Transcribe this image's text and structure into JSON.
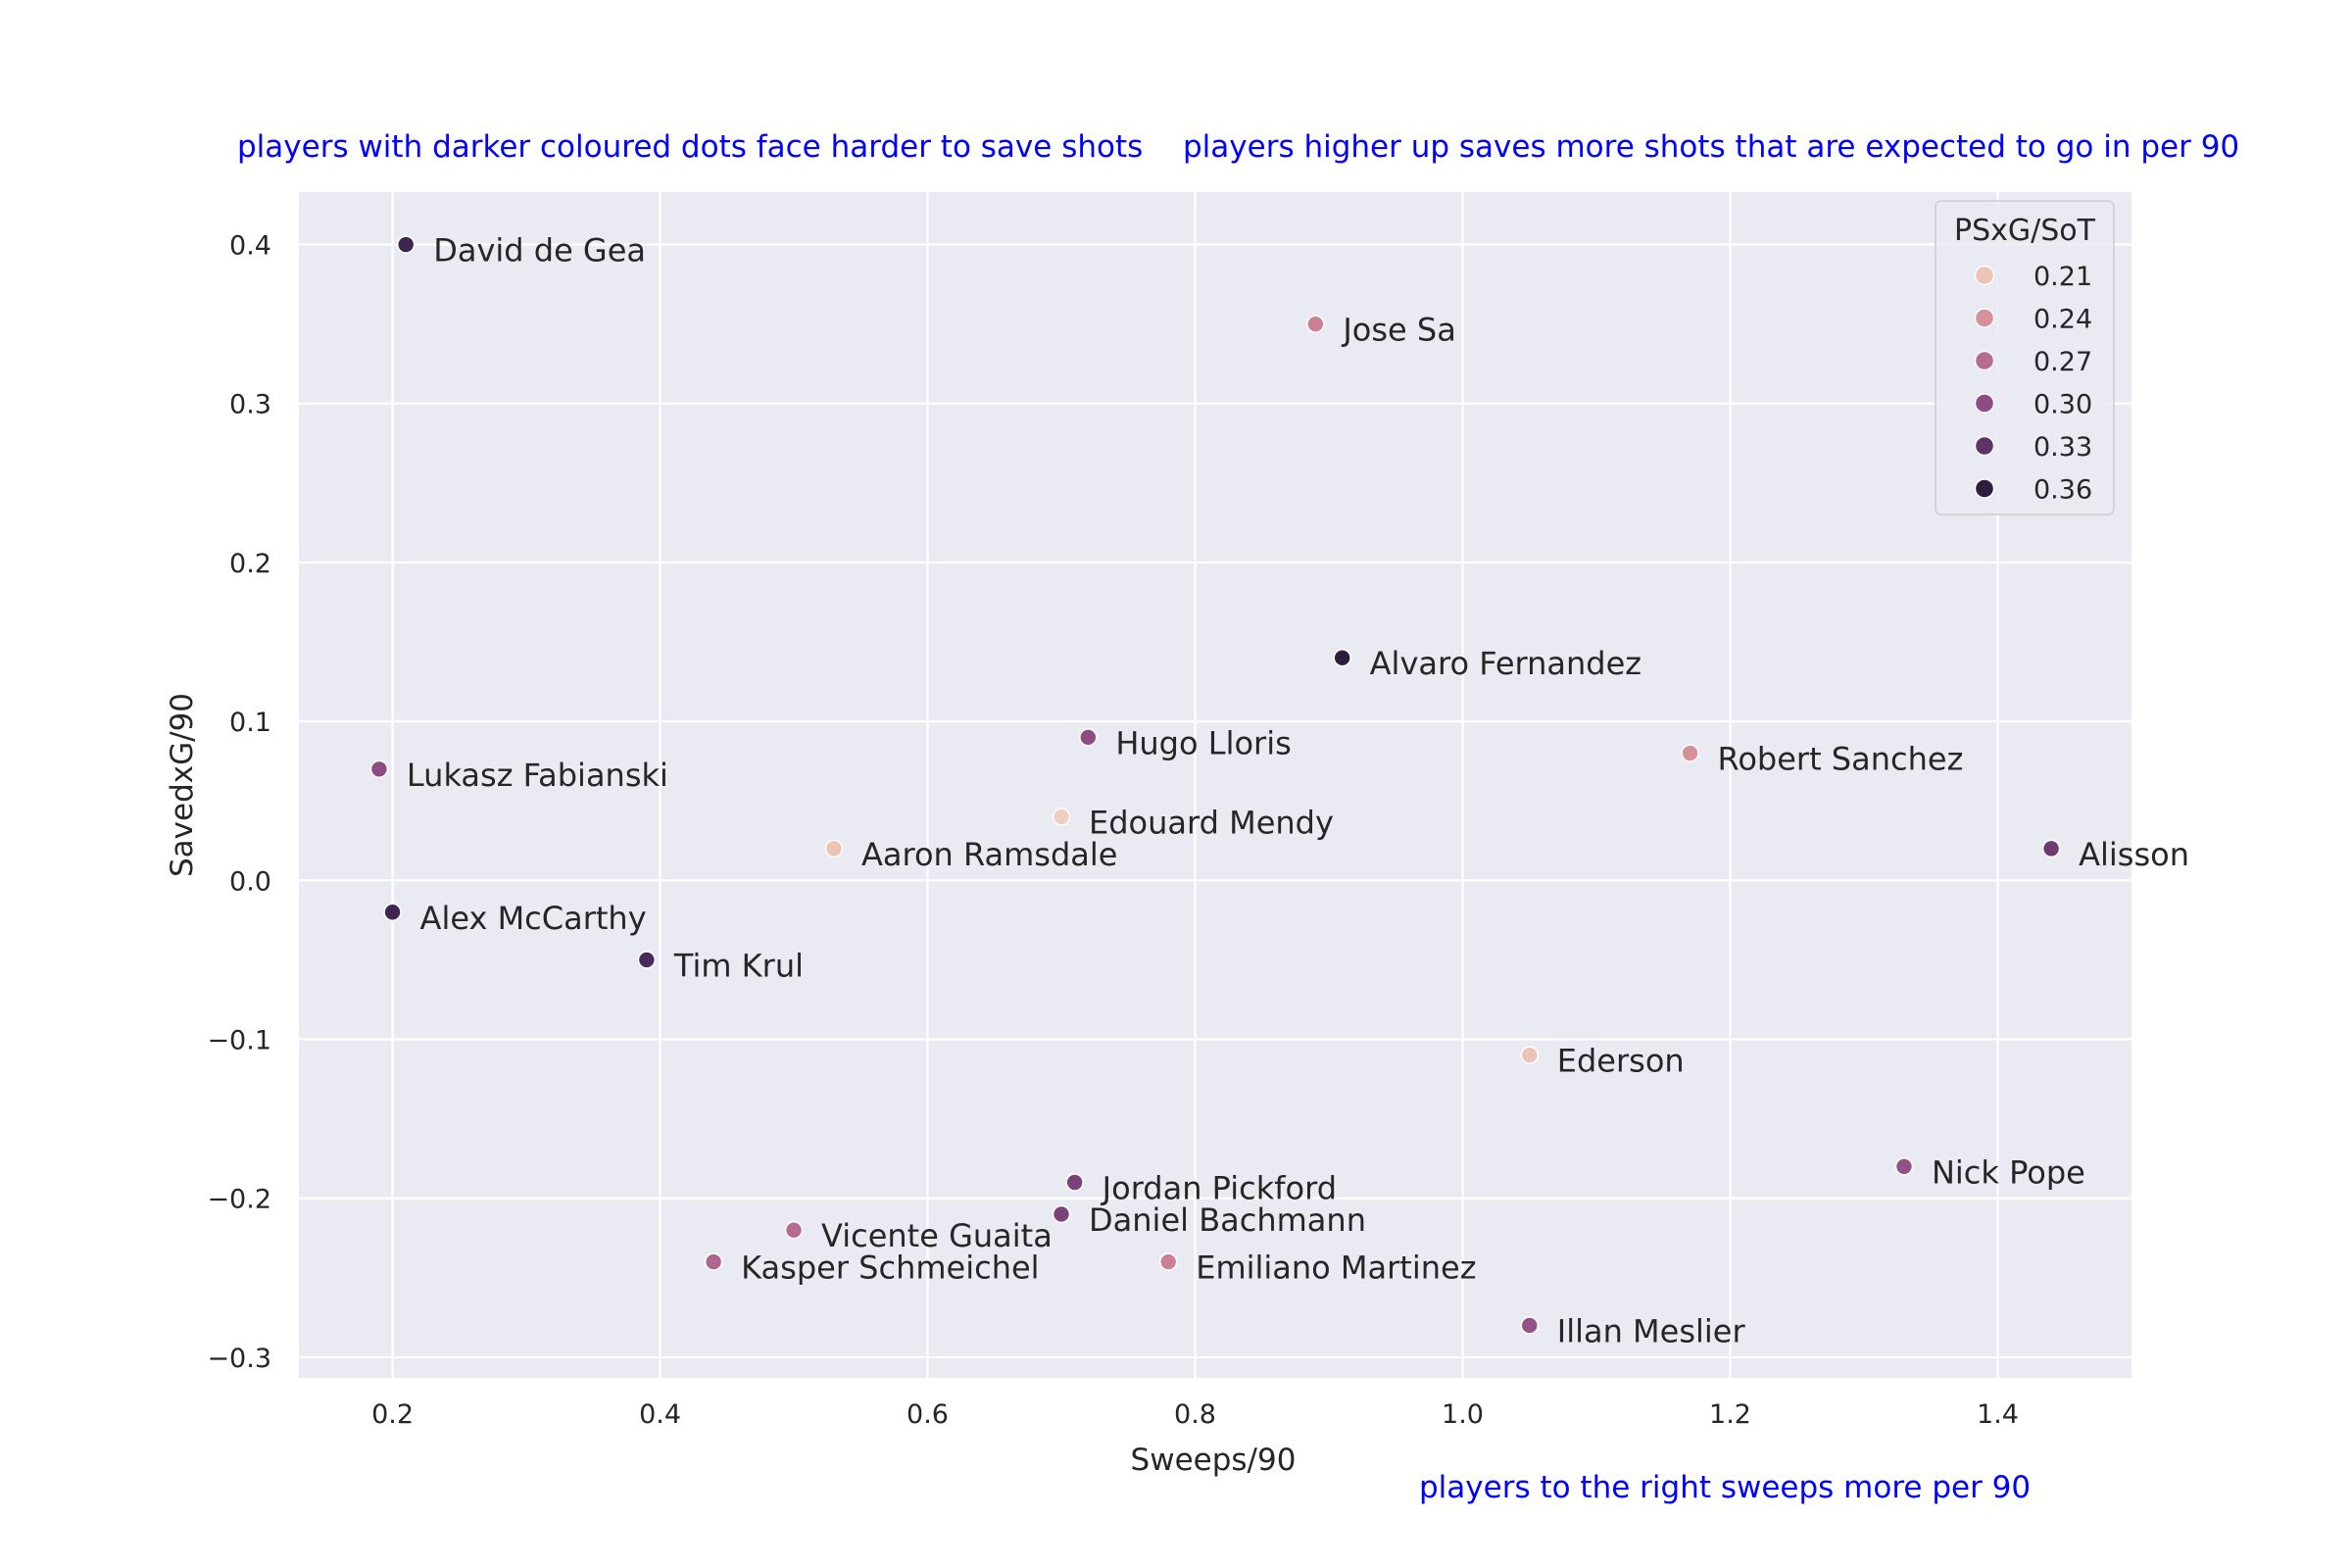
{
  "chart_data": {
    "type": "scatter",
    "xlabel": "Sweeps/90",
    "ylabel": "SavedxG/90",
    "xlim": [
      0.13,
      1.5
    ],
    "ylim": [
      -0.313,
      0.433
    ],
    "x_ticks": [
      0.2,
      0.4,
      0.6,
      0.8,
      1.0,
      1.2,
      1.4
    ],
    "x_tick_labels": [
      "0.2",
      "0.4",
      "0.6",
      "0.8",
      "1.0",
      "1.2",
      "1.4"
    ],
    "y_ticks": [
      0.4,
      0.3,
      0.2,
      0.1,
      0.0,
      -0.1,
      -0.2,
      -0.3
    ],
    "y_tick_labels": [
      "0.4",
      "0.3",
      "0.2",
      "0.1",
      "0.0",
      "−0.1",
      "−0.2",
      "−0.3"
    ],
    "grid": true,
    "hue": "PSxG/SoT",
    "annotations": {
      "top_left": "players with darker coloured dots face harder to save shots",
      "top_right": "players higher up saves more shots that are expected to go in per 90",
      "bottom_right": "players to the right sweeps more per 90"
    },
    "legend": {
      "title": "PSxG/SoT",
      "placement": "top-right",
      "entries": [
        {
          "label": "0.21",
          "color": "#ecc3b7"
        },
        {
          "label": "0.24",
          "color": "#d6909a"
        },
        {
          "label": "0.27",
          "color": "#b86b90"
        },
        {
          "label": "0.30",
          "color": "#8d4d82"
        },
        {
          "label": "0.33",
          "color": "#5e3368"
        },
        {
          "label": "0.36",
          "color": "#2d1e3e"
        }
      ]
    },
    "points": [
      {
        "name": "David de Gea",
        "x": 0.21,
        "y": 0.4,
        "color": "#3d2550"
      },
      {
        "name": "Jose Sa",
        "x": 0.89,
        "y": 0.35,
        "color": "#cc8093"
      },
      {
        "name": "Alvaro Fernandez",
        "x": 0.91,
        "y": 0.14,
        "color": "#2d1e3e"
      },
      {
        "name": "Hugo Lloris",
        "x": 0.72,
        "y": 0.09,
        "color": "#8d4d82"
      },
      {
        "name": "Lukasz Fabianski",
        "x": 0.19,
        "y": 0.07,
        "color": "#8d4d82"
      },
      {
        "name": "Robert Sanchez",
        "x": 1.17,
        "y": 0.08,
        "color": "#d6909a"
      },
      {
        "name": "Edouard Mendy",
        "x": 0.7,
        "y": 0.04,
        "color": "#f0cfc2"
      },
      {
        "name": "Aaron Ramsdale",
        "x": 0.53,
        "y": 0.02,
        "color": "#ecc3b7"
      },
      {
        "name": "Alisson",
        "x": 1.44,
        "y": 0.02,
        "color": "#6e3a72"
      },
      {
        "name": "Alex McCarthy",
        "x": 0.2,
        "y": -0.02,
        "color": "#3d2550"
      },
      {
        "name": "Tim Krul",
        "x": 0.39,
        "y": -0.05,
        "color": "#4a2a5a"
      },
      {
        "name": "Ederson",
        "x": 1.05,
        "y": -0.11,
        "color": "#ecc3b7"
      },
      {
        "name": "Nick Pope",
        "x": 1.33,
        "y": -0.18,
        "color": "#955085"
      },
      {
        "name": "Jordan Pickford",
        "x": 0.71,
        "y": -0.19,
        "color": "#7a4278"
      },
      {
        "name": "Daniel Bachmann",
        "x": 0.7,
        "y": -0.21,
        "color": "#7a4278"
      },
      {
        "name": "Vicente Guaita",
        "x": 0.5,
        "y": -0.22,
        "color": "#b86b90"
      },
      {
        "name": "Kasper Schmeichel",
        "x": 0.44,
        "y": -0.24,
        "color": "#b0658c"
      },
      {
        "name": "Emiliano Martinez",
        "x": 0.78,
        "y": -0.24,
        "color": "#cc8093"
      },
      {
        "name": "Illan Meslier",
        "x": 1.05,
        "y": -0.28,
        "color": "#955085"
      }
    ]
  },
  "colors": {
    "plot_background": "#eaeaf2",
    "grid": "#ffffff",
    "annotation": "#0000ff",
    "point_edge": "#ffffff"
  }
}
